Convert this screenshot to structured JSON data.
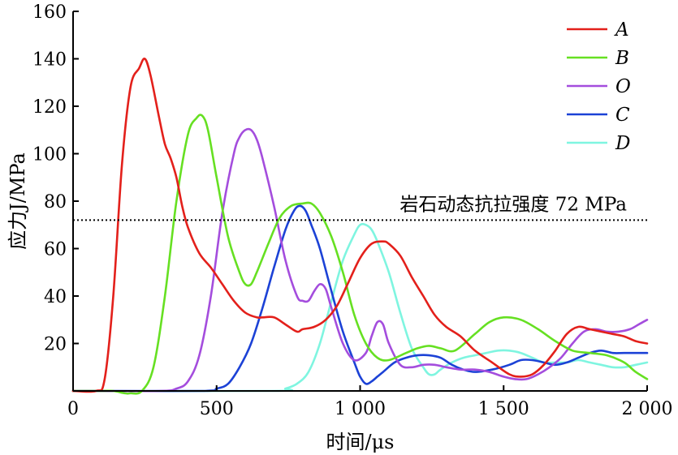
{
  "chart_data": {
    "type": "line",
    "xlabel": "时间/μs",
    "ylabel": "应力J/MPa",
    "xlim": [
      0,
      2000
    ],
    "ylim": [
      0,
      160
    ],
    "x_ticks": [
      {
        "value": 0,
        "label": "0"
      },
      {
        "value": 500,
        "label": "500"
      },
      {
        "value": 1000,
        "label": "1 000"
      },
      {
        "value": 1500,
        "label": "1 500"
      },
      {
        "value": 2000,
        "label": "2 000"
      }
    ],
    "y_ticks": [
      {
        "value": 20,
        "label": "20"
      },
      {
        "value": 40,
        "label": "40"
      },
      {
        "value": 60,
        "label": "60"
      },
      {
        "value": 80,
        "label": "80"
      },
      {
        "value": 100,
        "label": "100"
      },
      {
        "value": 120,
        "label": "120"
      },
      {
        "value": 140,
        "label": "140"
      },
      {
        "value": 160,
        "label": "160"
      }
    ],
    "grid": false,
    "legend_position": "top-right",
    "reference_line": {
      "value": 72,
      "label": "岩石动态抗拉强度 72 MPa",
      "style": "dotted",
      "color": "#000000"
    },
    "series": [
      {
        "name": "A",
        "color": "#e3201b",
        "x": [
          0,
          80,
          110,
          140,
          170,
          200,
          230,
          250,
          270,
          300,
          320,
          340,
          360,
          380,
          400,
          440,
          480,
          520,
          560,
          600,
          640,
          660,
          700,
          740,
          780,
          800,
          840,
          880,
          920,
          960,
          1000,
          1040,
          1080,
          1100,
          1140,
          1180,
          1220,
          1260,
          1300,
          1350,
          1400,
          1460,
          1520,
          1560,
          1600,
          1640,
          1680,
          1720,
          1760,
          1800,
          1840,
          1880,
          1920,
          1960,
          2000
        ],
        "y": [
          0,
          0,
          5,
          40,
          95,
          128,
          136,
          140,
          133,
          115,
          104,
          98,
          90,
          78,
          69,
          58,
          52,
          45,
          38,
          33,
          31,
          31,
          31,
          28,
          25,
          26,
          27,
          30,
          36,
          46,
          56,
          62,
          63,
          62,
          57,
          48,
          40,
          32,
          27,
          23,
          17,
          12,
          7,
          6,
          7,
          11,
          17,
          24,
          27,
          26,
          25,
          24,
          23,
          21,
          20
        ]
      },
      {
        "name": "B",
        "color": "#66e022",
        "x": [
          0,
          100,
          140,
          180,
          200,
          240,
          280,
          320,
          360,
          400,
          430,
          450,
          470,
          500,
          540,
          580,
          600,
          620,
          640,
          680,
          720,
          760,
          800,
          830,
          860,
          900,
          940,
          980,
          1020,
          1060,
          1100,
          1160,
          1200,
          1240,
          1280,
          1330,
          1400,
          1450,
          1500,
          1560,
          1620,
          1680,
          1740,
          1800,
          1860,
          1920,
          1960,
          2000
        ],
        "y": [
          0,
          0,
          0,
          -1,
          -1,
          0,
          10,
          40,
          80,
          108,
          115,
          116,
          110,
          90,
          65,
          50,
          45,
          45,
          50,
          62,
          73,
          78,
          79,
          79,
          75,
          65,
          50,
          32,
          20,
          14,
          13,
          16,
          18,
          19,
          18,
          17,
          24,
          29,
          31,
          30,
          26,
          21,
          17,
          16,
          15,
          12,
          8,
          5
        ]
      },
      {
        "name": "O",
        "color": "#a44ddd",
        "x": [
          0,
          300,
          360,
          400,
          440,
          480,
          520,
          560,
          580,
          600,
          620,
          640,
          660,
          700,
          740,
          780,
          800,
          820,
          840,
          860,
          880,
          900,
          940,
          980,
          1020,
          1040,
          1060,
          1080,
          1100,
          1140,
          1180,
          1220,
          1260,
          1300,
          1350,
          1400,
          1450,
          1500,
          1540,
          1580,
          1620,
          1660,
          1700,
          1740,
          1780,
          1820,
          1860,
          1900,
          1940,
          1970,
          2000
        ],
        "y": [
          0,
          0,
          1,
          4,
          15,
          40,
          75,
          100,
          107,
          110,
          110,
          106,
          98,
          78,
          55,
          40,
          38,
          38,
          42,
          45,
          43,
          35,
          20,
          13,
          16,
          23,
          29,
          28,
          20,
          11,
          10,
          11,
          11,
          10,
          9,
          9,
          8,
          6,
          5,
          5,
          7,
          10,
          14,
          20,
          25,
          26,
          25,
          25,
          26,
          28,
          30
        ]
      },
      {
        "name": "C",
        "color": "#1c42d6",
        "x": [
          0,
          450,
          500,
          540,
          580,
          620,
          660,
          700,
          740,
          770,
          790,
          810,
          830,
          860,
          900,
          940,
          980,
          1000,
          1020,
          1040,
          1060,
          1080,
          1120,
          1160,
          1200,
          1240,
          1280,
          1320,
          1360,
          1400,
          1460,
          1520,
          1560,
          1600,
          1640,
          1680,
          1720,
          1760,
          1800,
          1840,
          1880,
          1920,
          1960,
          2000
        ],
        "y": [
          0,
          0,
          1,
          3,
          10,
          20,
          35,
          52,
          68,
          76,
          78,
          76,
          70,
          60,
          42,
          25,
          12,
          6,
          3,
          4,
          6,
          8,
          12,
          14,
          15,
          15,
          14,
          11,
          9,
          8,
          9,
          11,
          13,
          13,
          12,
          11,
          12,
          14,
          16,
          17,
          16,
          16,
          16,
          16
        ]
      },
      {
        "name": "D",
        "color": "#7ff5e0",
        "x": [
          0,
          700,
          740,
          780,
          820,
          860,
          900,
          940,
          980,
          1000,
          1020,
          1040,
          1060,
          1100,
          1140,
          1180,
          1220,
          1240,
          1260,
          1280,
          1320,
          1360,
          1400,
          1440,
          1480,
          1520,
          1560,
          1600,
          1640,
          1680,
          1720,
          1760,
          1800,
          1840,
          1880,
          1920,
          1960,
          2000
        ],
        "y": [
          0,
          0,
          1,
          3,
          8,
          20,
          38,
          55,
          66,
          70,
          70,
          68,
          63,
          50,
          33,
          18,
          10,
          7,
          7,
          9,
          12,
          14,
          15,
          16,
          17,
          17,
          16,
          14,
          12,
          12,
          12,
          13,
          12,
          11,
          10,
          10,
          11,
          12
        ]
      }
    ]
  }
}
